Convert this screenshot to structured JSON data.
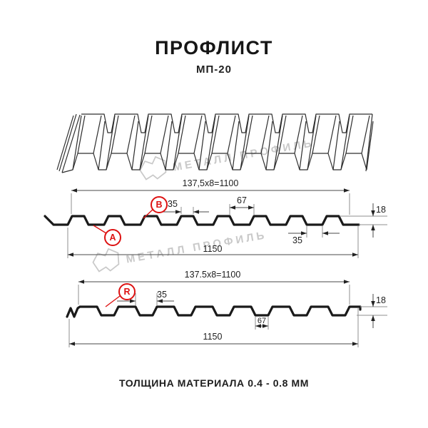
{
  "header": {
    "title": "ПРОФЛИСТ",
    "subtitle": "МП-20"
  },
  "watermark": {
    "brand": "МЕТАЛЛ ПРОФИЛЬ"
  },
  "drawing": {
    "section1": {
      "formula": "137,5x8=1100",
      "overall_width": "1150",
      "crest_width": "35",
      "valley_opening": "67",
      "height": "18",
      "valley_width": "35",
      "label_a": "A",
      "label_b": "B"
    },
    "section2": {
      "formula": "137.5x8=1100",
      "overall_width": "1150",
      "crest_width": "35",
      "valley_width": "67",
      "height": "18",
      "label_r": "R"
    }
  },
  "footer": {
    "material_thickness": "ТОЛЩИНА МАТЕРИАЛА 0.4 - 0.8 ММ"
  },
  "colors": {
    "accent": "#dd1111",
    "line": "#1a1a1a",
    "dimc": "#4a4a4a",
    "wm": "#c9c9c9"
  }
}
